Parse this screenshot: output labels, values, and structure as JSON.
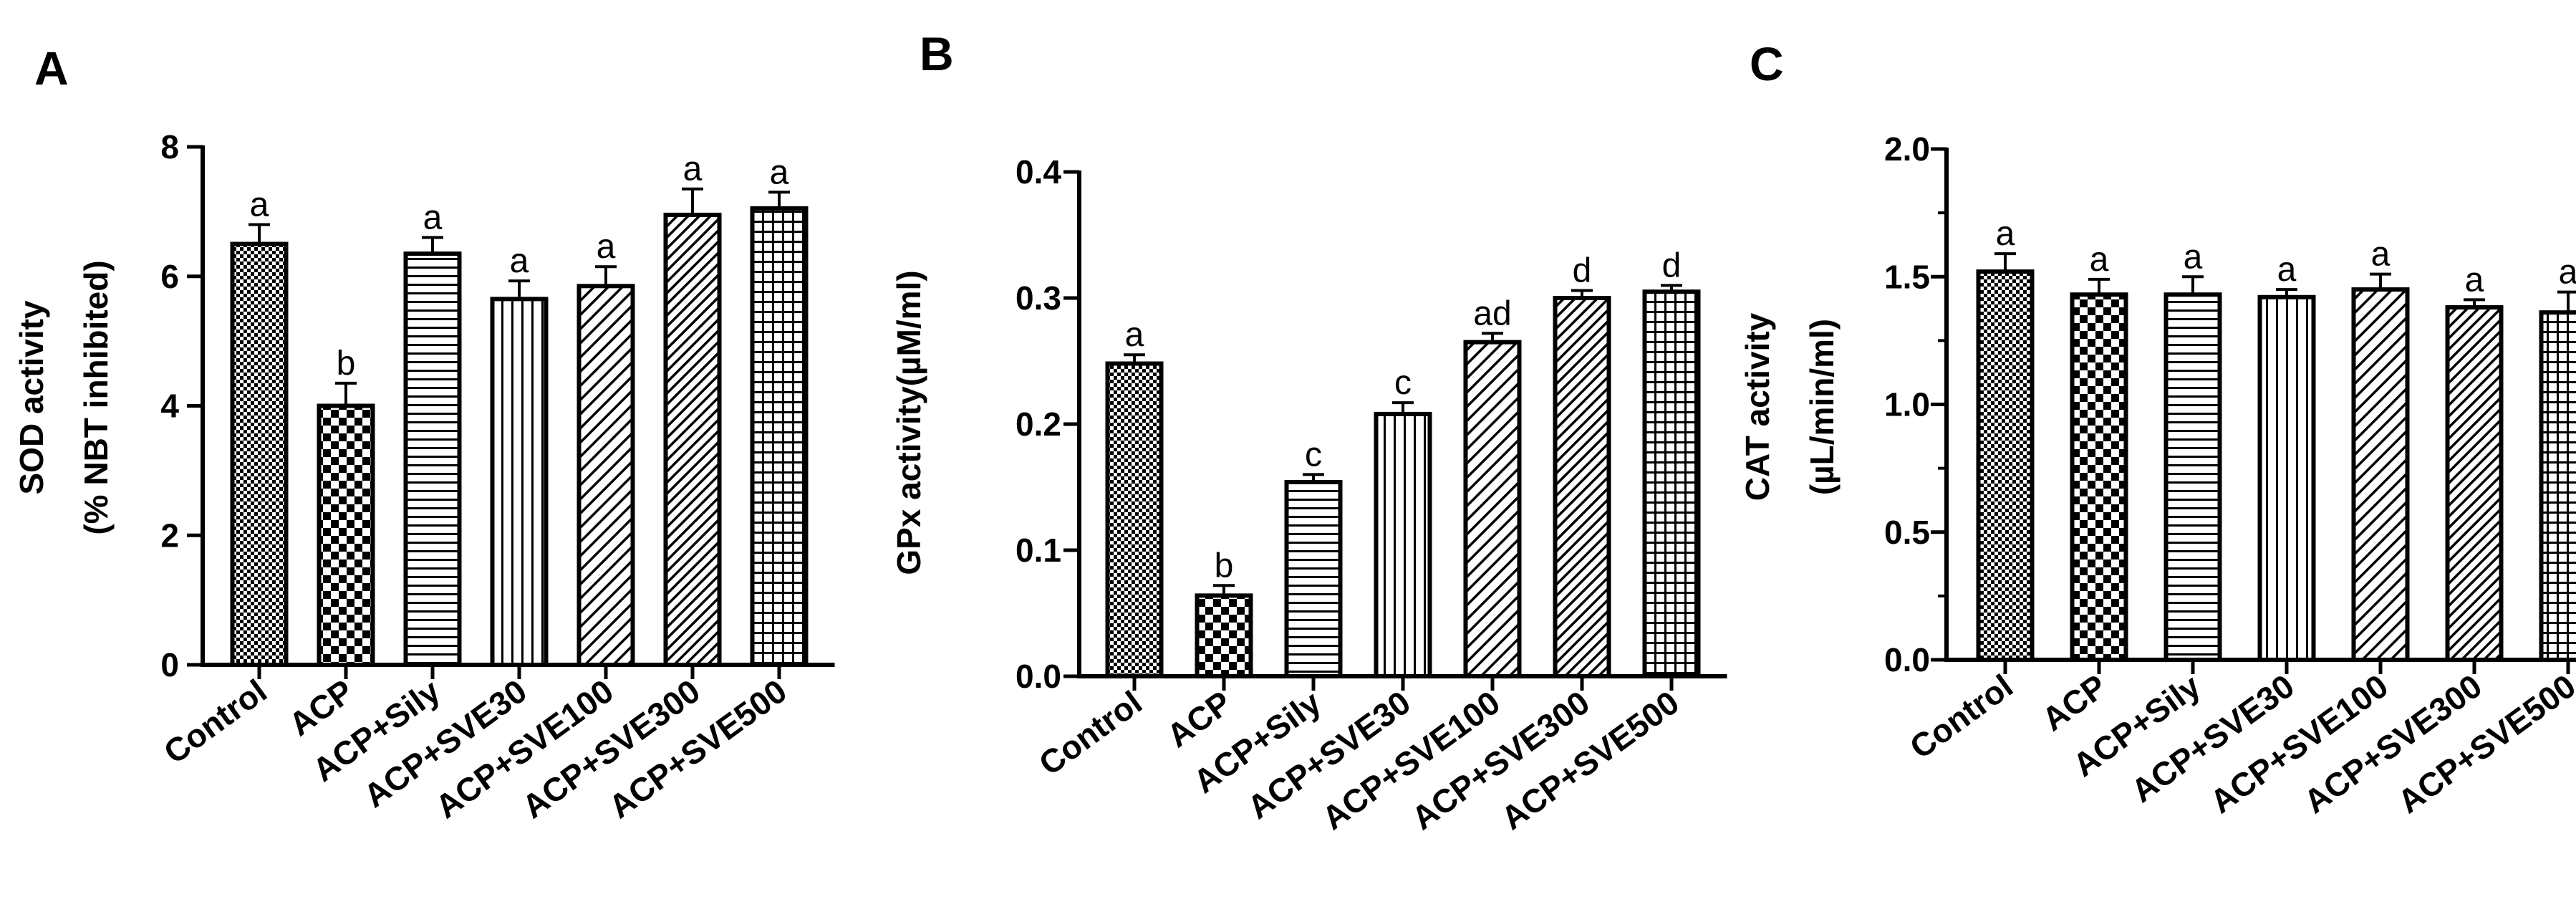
{
  "chart_data": [
    {
      "type": "bar",
      "panel_label": "A",
      "categories": [
        "Control",
        "ACP",
        "ACP+Sily",
        "ACP+SVE30",
        "ACP+SVE100",
        "ACP+SVE300",
        "ACP+SVE500"
      ],
      "series": [
        {
          "values": [
            6.5,
            4.0,
            6.35,
            5.65,
            5.85,
            6.95,
            7.05
          ],
          "errors": [
            0.3,
            0.35,
            0.25,
            0.28,
            0.3,
            0.4,
            0.25
          ],
          "significance": [
            "a",
            "b",
            "a",
            "a",
            "a",
            "a",
            "a"
          ]
        }
      ],
      "ylabel_lines": [
        "SOD activity",
        "(% NBT inhibited)"
      ],
      "ylim": [
        0,
        8
      ],
      "yticks": [
        "0",
        "2",
        "4",
        "6",
        "8"
      ],
      "grid": false,
      "legend": "none"
    },
    {
      "type": "bar",
      "panel_label": "B",
      "categories": [
        "Control",
        "ACP",
        "ACP+Sily",
        "ACP+SVE30",
        "ACP+SVE100",
        "ACP+SVE300",
        "ACP+SVE500"
      ],
      "series": [
        {
          "values": [
            0.248,
            0.064,
            0.154,
            0.208,
            0.265,
            0.3,
            0.305
          ],
          "errors": [
            0.007,
            0.008,
            0.006,
            0.009,
            0.007,
            0.006,
            0.005
          ],
          "significance": [
            "a",
            "b",
            "c",
            "c",
            "ad",
            "d",
            "d"
          ]
        }
      ],
      "ylabel_lines": [
        "GPx activity(µM/ml)"
      ],
      "ylim": [
        0,
        0.4
      ],
      "yticks": [
        "0.0",
        "0.1",
        "0.2",
        "0.3",
        "0.4"
      ],
      "grid": false,
      "legend": "none"
    },
    {
      "type": "bar",
      "panel_label": "C",
      "categories": [
        "Control",
        "ACP",
        "ACP+Sily",
        "ACP+SVE30",
        "ACP+SVE100",
        "ACP+SVE300",
        "ACP+SVE500"
      ],
      "series": [
        {
          "values": [
            1.52,
            1.43,
            1.43,
            1.42,
            1.45,
            1.38,
            1.36
          ],
          "errors": [
            0.07,
            0.06,
            0.07,
            0.03,
            0.06,
            0.03,
            0.08
          ],
          "significance": [
            "a",
            "a",
            "a",
            "a",
            "a",
            "a",
            "a"
          ]
        }
      ],
      "ylabel_lines": [
        "CAT activity",
        "(µL/min/ml)"
      ],
      "ylim": [
        0,
        2.0
      ],
      "yticks": [
        "0.0",
        "0.5",
        "1.0",
        "1.5",
        "2.0"
      ],
      "grid": false,
      "legend": "none"
    }
  ],
  "colors": {
    "bar_stroke": "#000000",
    "pattern_ink": "#000000",
    "background": "#ffffff"
  }
}
